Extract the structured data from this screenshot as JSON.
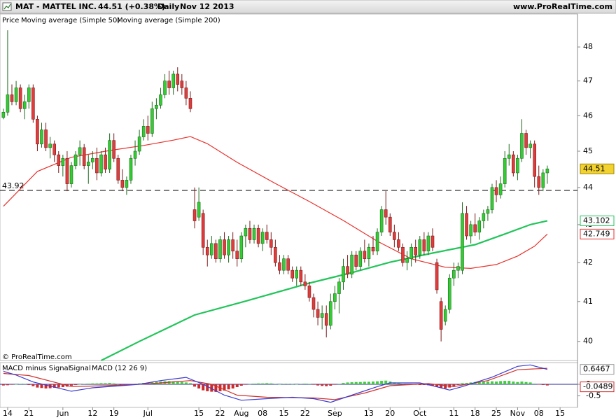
{
  "header": {
    "symbol": "MAT - MATTEL INC.",
    "quote": "44.51 (+0.38%)",
    "period": "Daily",
    "date": "Nov 12 2013",
    "site": "www.ProRealTime.com"
  },
  "credit": "© ProRealTime.com",
  "chart_data": [
    {
      "type": "candlestick",
      "legend_title": "Price",
      "log_scale": true,
      "ylim": [
        39.53,
        48.99
      ],
      "yticks": [
        40,
        41,
        42,
        43,
        44,
        45,
        46,
        47,
        48
      ],
      "xlim": [
        -0.8,
        135.1
      ],
      "hline": 43.92,
      "up_color": "#33cc33",
      "down_color": "#e03c3c",
      "ohlc": [
        [
          45.95,
          46.2,
          45.9,
          46.1
        ],
        [
          46.1,
          48.5,
          46.0,
          46.6
        ],
        [
          46.6,
          46.9,
          46.3,
          46.4
        ],
        [
          46.4,
          47.0,
          46.3,
          46.8
        ],
        [
          46.8,
          46.9,
          46.1,
          46.2
        ],
        [
          46.2,
          46.6,
          45.9,
          46.4
        ],
        [
          46.4,
          46.9,
          46.2,
          46.8
        ],
        [
          46.8,
          46.9,
          45.8,
          45.9
        ],
        [
          45.9,
          46.0,
          45.0,
          45.2
        ],
        [
          45.2,
          45.8,
          45.1,
          45.6
        ],
        [
          45.6,
          45.8,
          45.0,
          45.1
        ],
        [
          45.1,
          45.4,
          44.8,
          45.2
        ],
        [
          45.2,
          45.3,
          44.7,
          44.9
        ],
        [
          44.9,
          45.0,
          44.4,
          44.6
        ],
        [
          44.6,
          44.9,
          44.3,
          44.8
        ],
        [
          44.8,
          45.0,
          43.9,
          44.1
        ],
        [
          44.1,
          44.7,
          44.0,
          44.6
        ],
        [
          44.6,
          45.0,
          44.5,
          44.9
        ],
        [
          44.9,
          45.3,
          44.6,
          45.1
        ],
        [
          45.1,
          45.2,
          44.5,
          44.6
        ],
        [
          44.6,
          44.9,
          44.1,
          44.7
        ],
        [
          44.7,
          45.0,
          44.5,
          44.8
        ],
        [
          44.8,
          45.1,
          44.2,
          44.4
        ],
        [
          44.4,
          45.0,
          44.3,
          44.9
        ],
        [
          44.9,
          45.1,
          44.4,
          44.5
        ],
        [
          44.5,
          45.5,
          44.4,
          45.3
        ],
        [
          45.3,
          45.5,
          44.7,
          44.8
        ],
        [
          44.8,
          44.9,
          44.1,
          44.2
        ],
        [
          44.2,
          44.5,
          43.9,
          44.0
        ],
        [
          44.0,
          44.3,
          43.8,
          44.2
        ],
        [
          44.2,
          44.9,
          44.1,
          44.8
        ],
        [
          44.8,
          45.3,
          44.6,
          45.0
        ],
        [
          45.0,
          45.6,
          44.9,
          45.4
        ],
        [
          45.4,
          45.9,
          45.3,
          45.7
        ],
        [
          45.7,
          46.0,
          45.3,
          45.5
        ],
        [
          45.5,
          46.4,
          45.4,
          46.2
        ],
        [
          46.2,
          46.5,
          45.9,
          46.3
        ],
        [
          46.3,
          46.8,
          46.2,
          46.6
        ],
        [
          46.6,
          47.2,
          46.5,
          47.0
        ],
        [
          47.0,
          47.3,
          46.6,
          46.8
        ],
        [
          46.8,
          47.3,
          46.6,
          47.2
        ],
        [
          47.2,
          47.4,
          46.7,
          46.9
        ],
        [
          47.0,
          47.2,
          46.6,
          46.8
        ],
        [
          46.8,
          47.0,
          46.3,
          46.5
        ],
        [
          46.5,
          46.7,
          46.1,
          46.2
        ],
        [
          43.4,
          44.0,
          42.9,
          43.1
        ],
        [
          43.2,
          44.0,
          43.1,
          43.6
        ],
        [
          43.3,
          43.4,
          42.2,
          42.4
        ],
        [
          42.4,
          42.6,
          41.9,
          42.2
        ],
        [
          42.2,
          42.7,
          42.1,
          42.5
        ],
        [
          42.5,
          42.6,
          42.0,
          42.1
        ],
        [
          42.1,
          42.7,
          42.0,
          42.6
        ],
        [
          42.6,
          42.8,
          42.1,
          42.2
        ],
        [
          42.2,
          42.7,
          42.0,
          42.6
        ],
        [
          42.6,
          42.8,
          42.1,
          42.3
        ],
        [
          42.3,
          42.6,
          41.9,
          42.1
        ],
        [
          42.1,
          42.8,
          42.0,
          42.7
        ],
        [
          42.7,
          43.0,
          42.4,
          42.9
        ],
        [
          42.9,
          43.1,
          42.5,
          42.6
        ],
        [
          42.6,
          43.0,
          42.5,
          42.9
        ],
        [
          42.9,
          43.0,
          42.4,
          42.5
        ],
        [
          42.5,
          42.9,
          42.3,
          42.8
        ],
        [
          42.8,
          43.0,
          42.5,
          42.6
        ],
        [
          42.6,
          42.8,
          42.2,
          42.4
        ],
        [
          42.4,
          42.6,
          41.9,
          42.0
        ],
        [
          42.0,
          42.2,
          41.7,
          41.8
        ],
        [
          41.8,
          42.2,
          41.7,
          42.1
        ],
        [
          42.1,
          42.2,
          41.7,
          41.8
        ],
        [
          41.8,
          41.9,
          41.5,
          41.6
        ],
        [
          41.6,
          41.9,
          41.4,
          41.8
        ],
        [
          41.8,
          41.9,
          41.4,
          41.5
        ],
        [
          41.5,
          41.7,
          41.3,
          41.4
        ],
        [
          41.4,
          41.5,
          41.0,
          41.1
        ],
        [
          41.1,
          41.2,
          40.6,
          40.8
        ],
        [
          40.8,
          41.0,
          40.4,
          40.6
        ],
        [
          40.6,
          40.9,
          40.3,
          40.7
        ],
        [
          40.7,
          40.9,
          40.1,
          40.4
        ],
        [
          40.4,
          41.2,
          40.3,
          41.0
        ],
        [
          41.0,
          41.4,
          40.8,
          41.2
        ],
        [
          41.2,
          41.6,
          40.7,
          41.5
        ],
        [
          41.5,
          42.1,
          41.3,
          41.9
        ],
        [
          41.9,
          42.2,
          41.6,
          41.7
        ],
        [
          41.7,
          42.3,
          41.6,
          42.2
        ],
        [
          42.2,
          42.3,
          41.8,
          41.9
        ],
        [
          41.9,
          42.4,
          41.8,
          42.3
        ],
        [
          42.3,
          42.6,
          42.0,
          42.1
        ],
        [
          42.1,
          42.5,
          41.9,
          42.4
        ],
        [
          42.4,
          42.7,
          42.2,
          42.3
        ],
        [
          42.3,
          42.9,
          42.2,
          42.8
        ],
        [
          42.8,
          43.5,
          42.7,
          43.4
        ],
        [
          43.4,
          43.9,
          43.0,
          43.2
        ],
        [
          43.2,
          43.3,
          42.7,
          42.8
        ],
        [
          42.8,
          43.0,
          42.4,
          42.6
        ],
        [
          42.6,
          42.8,
          42.3,
          42.4
        ],
        [
          42.4,
          42.5,
          41.9,
          42.0
        ],
        [
          42.0,
          42.3,
          41.8,
          42.1
        ],
        [
          42.1,
          42.5,
          41.9,
          42.4
        ],
        [
          42.4,
          42.6,
          42.0,
          42.2
        ],
        [
          42.2,
          42.7,
          42.1,
          42.6
        ],
        [
          42.6,
          42.8,
          42.2,
          42.3
        ],
        [
          42.3,
          42.8,
          42.2,
          42.7
        ],
        [
          42.7,
          42.9,
          42.3,
          42.4
        ],
        [
          42.0,
          42.1,
          41.2,
          41.3
        ],
        [
          41.0,
          41.1,
          40.0,
          40.3
        ],
        [
          40.5,
          40.9,
          40.4,
          40.8
        ],
        [
          40.8,
          41.7,
          40.7,
          41.6
        ],
        [
          41.6,
          42.0,
          41.4,
          41.8
        ],
        [
          41.8,
          42.0,
          41.6,
          41.9
        ],
        [
          41.8,
          43.6,
          41.7,
          43.3
        ],
        [
          43.3,
          43.5,
          42.6,
          42.7
        ],
        [
          42.7,
          43.1,
          42.5,
          43.0
        ],
        [
          43.0,
          43.3,
          42.7,
          42.8
        ],
        [
          42.8,
          43.2,
          42.6,
          43.1
        ],
        [
          43.1,
          43.4,
          42.9,
          43.3
        ],
        [
          43.3,
          43.5,
          43.1,
          43.4
        ],
        [
          43.4,
          44.1,
          43.3,
          44.0
        ],
        [
          44.0,
          44.2,
          43.6,
          43.8
        ],
        [
          43.8,
          44.3,
          43.7,
          44.1
        ],
        [
          44.1,
          45.0,
          44.0,
          44.8
        ],
        [
          44.8,
          45.2,
          44.6,
          44.9
        ],
        [
          44.9,
          45.0,
          44.3,
          44.4
        ],
        [
          44.4,
          44.9,
          44.2,
          44.8
        ],
        [
          44.8,
          45.9,
          44.7,
          45.5
        ],
        [
          45.5,
          45.6,
          44.9,
          45.1
        ],
        [
          45.1,
          45.3,
          44.8,
          45.2
        ],
        [
          45.2,
          45.3,
          44.0,
          44.3
        ],
        [
          44.3,
          44.6,
          43.8,
          44.0
        ],
        [
          44.0,
          44.5,
          43.9,
          44.4
        ],
        [
          44.4,
          44.6,
          44.1,
          44.51
        ]
      ],
      "series": [
        {
          "name": "Moving average (Simple 50)",
          "color": "#e8302a",
          "x": [
            0,
            8,
            16,
            25,
            33,
            40,
            44,
            48,
            55,
            64,
            72,
            80,
            88,
            96,
            104,
            110,
            116,
            121,
            125,
            128
          ],
          "values": [
            43.49,
            44.44,
            44.83,
            45.02,
            45.16,
            45.31,
            45.41,
            45.21,
            44.69,
            44.11,
            43.62,
            43.11,
            42.56,
            42.1,
            41.88,
            41.85,
            41.95,
            42.17,
            42.43,
            42.749
          ]
        },
        {
          "name": "Moving average (Simple 200)",
          "color": "#22c45a",
          "x": [
            23,
            32,
            45,
            57,
            72,
            82,
            91,
            101,
            111,
            118,
            124,
            128
          ],
          "values": [
            39.53,
            40.0,
            40.66,
            41.01,
            41.47,
            41.74,
            42.01,
            42.25,
            42.47,
            42.75,
            43.0,
            43.102
          ]
        }
      ]
    },
    {
      "type": "macd",
      "ylim": [
        -1.0,
        0.94
      ],
      "yticks": [
        0,
        -0.5
      ],
      "up_color": "#44cc44",
      "down_color": "#cc2b2b",
      "xticks": [
        {
          "value": 1,
          "label": "14"
        },
        {
          "value": 6,
          "label": "21"
        },
        {
          "value": 14,
          "label": "Jun"
        },
        {
          "value": 21,
          "label": "12"
        },
        {
          "value": 26,
          "label": "19"
        },
        {
          "value": 34,
          "label": "Jul"
        },
        {
          "value": 46,
          "label": "15"
        },
        {
          "value": 51,
          "label": "22"
        },
        {
          "value": 56,
          "label": "Aug"
        },
        {
          "value": 61,
          "label": "08"
        },
        {
          "value": 66,
          "label": "15"
        },
        {
          "value": 71,
          "label": "22"
        },
        {
          "value": 78,
          "label": "Sep"
        },
        {
          "value": 86,
          "label": "13"
        },
        {
          "value": 91,
          "label": "20"
        },
        {
          "value": 98,
          "label": "Oct"
        },
        {
          "value": 106,
          "label": "11"
        },
        {
          "value": 111,
          "label": "18"
        },
        {
          "value": 116,
          "label": "25"
        },
        {
          "value": 121,
          "label": "Nov"
        },
        {
          "value": 126,
          "label": "08"
        },
        {
          "value": 131,
          "label": "15"
        }
      ],
      "histogram": {
        "name": "MACD minus Signal",
        "color": "#e87a7a",
        "values": [
          -0.05,
          -0.04,
          -0.02,
          0,
          0.02,
          0.02,
          -0.03,
          -0.08,
          -0.14,
          -0.16,
          -0.18,
          -0.17,
          -0.15,
          -0.14,
          -0.12,
          -0.1,
          -0.06,
          -0.03,
          0,
          0.02,
          0.03,
          0.04,
          0.04,
          0.05,
          0.05,
          0.06,
          0.04,
          0,
          -0.02,
          -0.02,
          0,
          0.02,
          0.04,
          0.06,
          0.07,
          0.09,
          0.1,
          0.12,
          0.13,
          0.14,
          0.13,
          0.12,
          0.1,
          0.08,
          0.05,
          -0.1,
          -0.18,
          -0.26,
          -0.3,
          -0.32,
          -0.33,
          -0.3,
          -0.27,
          -0.22,
          -0.18,
          -0.12,
          -0.06,
          -0.02,
          0.01,
          0.03,
          0.04,
          0.04,
          0.05,
          0.04,
          0.02,
          0,
          0.02,
          0.02,
          0.01,
          0,
          0.02,
          0.03,
          0.02,
          -0.02,
          -0.05,
          -0.07,
          -0.08,
          -0.06,
          -0.02,
          0.02,
          0.06,
          0.08,
          0.09,
          0.1,
          0.1,
          0.11,
          0.11,
          0.12,
          0.13,
          0.15,
          0.16,
          0.12,
          0.08,
          0.05,
          0.02,
          0,
          -0.01,
          -0.02,
          -0.03,
          -0.03,
          -0.04,
          -0.05,
          -0.1,
          -0.16,
          -0.18,
          -0.14,
          -0.08,
          -0.03,
          0.05,
          0.06,
          0.08,
          0.1,
          0.1,
          0.11,
          0.12,
          0.13,
          0.12,
          0.14,
          0.15,
          0.15,
          0.12,
          0.1,
          0.12,
          0.1,
          0.08,
          0.03,
          -0.01,
          -0.03,
          -0.0489
        ]
      },
      "series": [
        {
          "name": "Signal",
          "color": "#d0302a",
          "x": [
            0,
            6,
            16,
            24,
            35,
            44,
            49,
            55,
            62,
            73,
            78,
            85,
            91,
            100,
            106,
            114,
            121,
            128
          ],
          "values": [
            0.47,
            0.38,
            -0.1,
            -0.06,
            0.03,
            0.16,
            0,
            -0.47,
            -0.56,
            -0.59,
            -0.66,
            -0.38,
            -0.06,
            0.03,
            -0.1,
            0.16,
            0.63,
            0.6956
          ]
        },
        {
          "name": "MACD (12 26 9)",
          "color": "#3a3ad0",
          "x": [
            0,
            3,
            7,
            16,
            21,
            32,
            37,
            43,
            47,
            52,
            56,
            62,
            68,
            73,
            77,
            82,
            88,
            91,
            98,
            101,
            105,
            108,
            115,
            121,
            124,
            128
          ],
          "values": [
            0.56,
            0.4,
            0.1,
            -0.3,
            -0.15,
            0,
            0.16,
            0.3,
            0,
            -0.47,
            -0.69,
            -0.62,
            -0.56,
            -0.62,
            -0.78,
            -0.47,
            -0.1,
            0.06,
            0.06,
            -0.06,
            -0.25,
            -0.1,
            0.31,
            0.78,
            0.84,
            0.6467
          ]
        }
      ]
    }
  ]
}
